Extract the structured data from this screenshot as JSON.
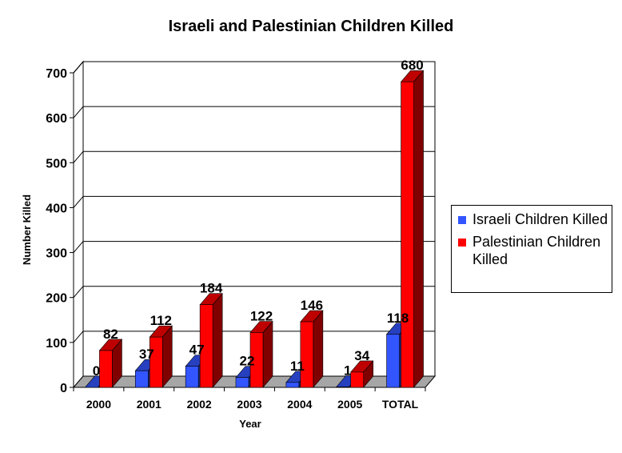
{
  "chart_data": {
    "type": "bar",
    "title": "Israeli and Palestinian Children Killed",
    "xlabel": "Year",
    "ylabel": "Number Killed",
    "categories": [
      "2000",
      "2001",
      "2002",
      "2003",
      "2004",
      "2005",
      "TOTAL"
    ],
    "series": [
      {
        "name": "Israeli Children Killed",
        "color": "#3355ff",
        "values": [
          0,
          37,
          47,
          22,
          11,
          1,
          118
        ]
      },
      {
        "name": "Palestinian Children Killed",
        "color": "#ff0000",
        "values": [
          82,
          112,
          184,
          122,
          146,
          34,
          680
        ]
      }
    ],
    "ylim": [
      0,
      700
    ],
    "yticks": [
      0,
      100,
      200,
      300,
      400,
      500,
      600,
      700
    ],
    "grid": true,
    "legend": "right",
    "style": "3d-clustered-columns"
  }
}
